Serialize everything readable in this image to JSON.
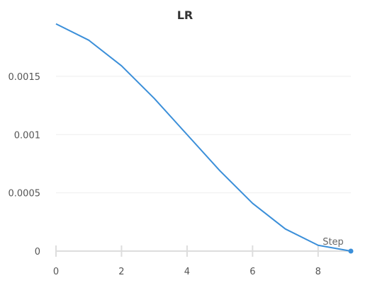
{
  "chart_data": {
    "type": "line",
    "title": "LR",
    "xlabel": "Step",
    "ylabel": "",
    "x": [
      0,
      1,
      2,
      3,
      4,
      5,
      6,
      7,
      8,
      9
    ],
    "series": [
      {
        "values": [
          0.00195,
          0.00181,
          0.00159,
          0.00131,
          0.001,
          0.00069,
          0.00041,
          0.00019,
          5e-05,
          0
        ]
      }
    ],
    "xlim": [
      0,
      9
    ],
    "ylim": [
      0,
      0.0019
    ],
    "x_ticks": [
      0,
      2,
      4,
      6,
      8
    ],
    "y_ticks": [
      0,
      0.0005,
      0.001,
      0.0015
    ],
    "y_tick_labels": [
      "0",
      "0.0005",
      "0.001",
      "0.0015"
    ],
    "grid": "horizontal",
    "colors": {
      "line": "#3b8fd9",
      "grid": "#eeeeee",
      "axis": "#dddddd",
      "tick_text": "#555555",
      "title": "#333333"
    }
  }
}
